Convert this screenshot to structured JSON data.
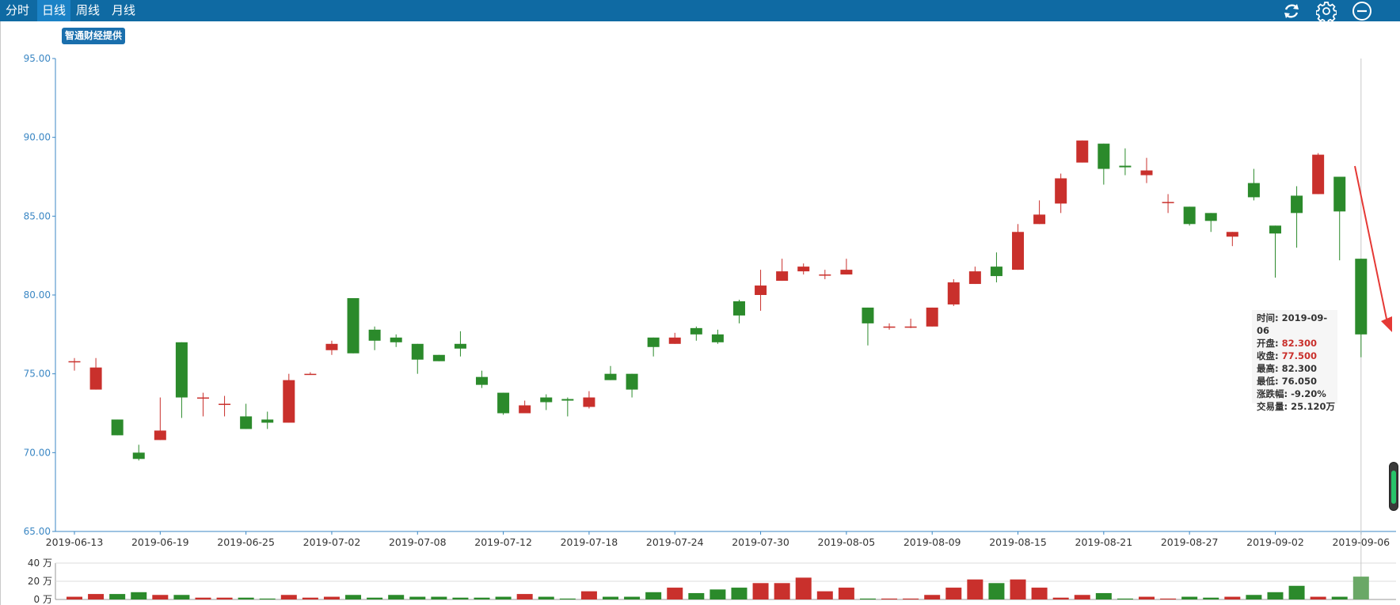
{
  "toolbar": {
    "tabs": [
      {
        "label": "分时"
      },
      {
        "label": "日线"
      },
      {
        "label": "周线"
      },
      {
        "label": "月线"
      }
    ],
    "active_tab": "日线",
    "icons": [
      "refresh-icon",
      "gear-icon",
      "minus-circle-icon"
    ]
  },
  "badge": "智通财经提供",
  "colors": {
    "up": "#c9302c",
    "down": "#2b8a2b",
    "axis": "#3b87c4",
    "bar_bg": "#0f6aa3",
    "tab_active": "#1b82c6"
  },
  "tooltip": {
    "time_label": "时间:",
    "time": "2019-09-06",
    "open_label": "开盘:",
    "open": "82.300",
    "close_label": "收盘:",
    "close": "77.500",
    "high_label": "最高:",
    "high": "82.300",
    "low_label": "最低:",
    "low": "76.050",
    "change_label": "涨跌幅:",
    "change": "-9.20%",
    "volume_label": "交易量:",
    "volume": "25.120万"
  },
  "chart_data": {
    "type": "candlestick",
    "ylim": [
      65,
      95
    ],
    "yticks": [
      "95.00",
      "90.00",
      "85.00",
      "80.00",
      "75.00",
      "70.00",
      "65.00"
    ],
    "volume_ylim": [
      0,
      40
    ],
    "volume_ticks": [
      "40 万",
      "20 万",
      "0 万"
    ],
    "xtick_labels": [
      "2019-06-13",
      "2019-06-19",
      "2019-06-25",
      "2019-07-02",
      "2019-07-08",
      "2019-07-12",
      "2019-07-18",
      "2019-07-24",
      "2019-07-30",
      "2019-08-05",
      "2019-08-09",
      "2019-08-15",
      "2019-08-21",
      "2019-08-27",
      "2019-09-02",
      "2019-09-06"
    ],
    "grid": false,
    "candles": [
      {
        "o": 75.8,
        "c": 75.8,
        "h": 76.0,
        "l": 75.2,
        "v": 3
      },
      {
        "o": 74.0,
        "c": 75.4,
        "h": 76.0,
        "l": 74.0,
        "v": 6
      },
      {
        "o": 72.1,
        "c": 71.1,
        "h": 72.1,
        "l": 71.1,
        "v": 6
      },
      {
        "o": 70.0,
        "c": 69.6,
        "h": 70.5,
        "l": 69.5,
        "v": 8
      },
      {
        "o": 70.8,
        "c": 71.4,
        "h": 73.5,
        "l": 70.8,
        "v": 5
      },
      {
        "o": 77.0,
        "c": 73.5,
        "h": 77.0,
        "l": 72.2,
        "v": 5
      },
      {
        "o": 73.5,
        "c": 73.5,
        "h": 73.8,
        "l": 72.3,
        "v": 2
      },
      {
        "o": 73.1,
        "c": 73.1,
        "h": 73.6,
        "l": 72.3,
        "v": 2
      },
      {
        "o": 72.3,
        "c": 71.5,
        "h": 73.1,
        "l": 71.5,
        "v": 2
      },
      {
        "o": 72.1,
        "c": 71.9,
        "h": 72.6,
        "l": 71.5,
        "v": 1
      },
      {
        "o": 71.9,
        "c": 74.6,
        "h": 75.0,
        "l": 71.9,
        "v": 5
      },
      {
        "o": 75.0,
        "c": 75.0,
        "h": 75.1,
        "l": 75.0,
        "v": 2
      },
      {
        "o": 76.5,
        "c": 76.9,
        "h": 77.1,
        "l": 76.2,
        "v": 3
      },
      {
        "o": 79.8,
        "c": 76.3,
        "h": 79.8,
        "l": 76.3,
        "v": 5
      },
      {
        "o": 77.8,
        "c": 77.1,
        "h": 78.0,
        "l": 76.5,
        "v": 2
      },
      {
        "o": 77.3,
        "c": 77.0,
        "h": 77.5,
        "l": 76.7,
        "v": 5
      },
      {
        "o": 76.9,
        "c": 75.9,
        "h": 76.9,
        "l": 75.0,
        "v": 3
      },
      {
        "o": 76.2,
        "c": 75.8,
        "h": 76.2,
        "l": 75.8,
        "v": 3
      },
      {
        "o": 76.9,
        "c": 76.6,
        "h": 77.7,
        "l": 76.1,
        "v": 2
      },
      {
        "o": 74.8,
        "c": 74.3,
        "h": 75.2,
        "l": 74.1,
        "v": 2
      },
      {
        "o": 73.8,
        "c": 72.5,
        "h": 73.8,
        "l": 72.4,
        "v": 3
      },
      {
        "o": 72.5,
        "c": 73.0,
        "h": 73.3,
        "l": 72.5,
        "v": 6
      },
      {
        "o": 73.5,
        "c": 73.2,
        "h": 73.7,
        "l": 72.7,
        "v": 3
      },
      {
        "o": 73.4,
        "c": 73.3,
        "h": 73.5,
        "l": 72.3,
        "v": 1
      },
      {
        "o": 72.9,
        "c": 73.5,
        "h": 73.9,
        "l": 72.8,
        "v": 9
      },
      {
        "o": 75.0,
        "c": 74.6,
        "h": 75.5,
        "l": 74.6,
        "v": 3
      },
      {
        "o": 75.0,
        "c": 74.0,
        "h": 75.0,
        "l": 73.5,
        "v": 3
      },
      {
        "o": 77.3,
        "c": 76.7,
        "h": 77.3,
        "l": 76.1,
        "v": 8
      },
      {
        "o": 76.9,
        "c": 77.3,
        "h": 77.6,
        "l": 76.9,
        "v": 13
      },
      {
        "o": 77.9,
        "c": 77.5,
        "h": 78.0,
        "l": 77.1,
        "v": 7
      },
      {
        "o": 77.5,
        "c": 77.0,
        "h": 77.8,
        "l": 76.9,
        "v": 11
      },
      {
        "o": 79.6,
        "c": 78.7,
        "h": 79.7,
        "l": 78.2,
        "v": 13
      },
      {
        "o": 80.0,
        "c": 80.6,
        "h": 81.6,
        "l": 79.0,
        "v": 18
      },
      {
        "o": 80.9,
        "c": 81.5,
        "h": 82.3,
        "l": 80.9,
        "v": 18
      },
      {
        "o": 81.5,
        "c": 81.8,
        "h": 82.0,
        "l": 81.3,
        "v": 24
      },
      {
        "o": 81.3,
        "c": 81.3,
        "h": 81.6,
        "l": 81.0,
        "v": 9
      },
      {
        "o": 81.3,
        "c": 81.6,
        "h": 82.3,
        "l": 81.3,
        "v": 13
      },
      {
        "o": 79.2,
        "c": 78.2,
        "h": 79.2,
        "l": 76.8,
        "v": 1
      },
      {
        "o": 78.0,
        "c": 78.0,
        "h": 78.2,
        "l": 77.8,
        "v": 1
      },
      {
        "o": 78.0,
        "c": 78.0,
        "h": 78.5,
        "l": 77.9,
        "v": 1
      },
      {
        "o": 78.0,
        "c": 79.2,
        "h": 79.2,
        "l": 78.0,
        "v": 5
      },
      {
        "o": 79.4,
        "c": 80.8,
        "h": 81.0,
        "l": 79.3,
        "v": 13
      },
      {
        "o": 80.7,
        "c": 81.5,
        "h": 81.8,
        "l": 80.7,
        "v": 22
      },
      {
        "o": 81.8,
        "c": 81.2,
        "h": 82.7,
        "l": 80.8,
        "v": 18
      },
      {
        "o": 81.6,
        "c": 84.0,
        "h": 84.5,
        "l": 81.6,
        "v": 22
      },
      {
        "o": 84.5,
        "c": 85.1,
        "h": 86.0,
        "l": 84.5,
        "v": 13
      },
      {
        "o": 85.8,
        "c": 87.4,
        "h": 87.7,
        "l": 85.2,
        "v": 2
      },
      {
        "o": 88.4,
        "c": 89.8,
        "h": 89.8,
        "l": 88.4,
        "v": 5
      },
      {
        "o": 89.6,
        "c": 88.0,
        "h": 89.6,
        "l": 87.0,
        "v": 7
      },
      {
        "o": 88.2,
        "c": 88.1,
        "h": 89.3,
        "l": 87.6,
        "v": 1
      },
      {
        "o": 87.6,
        "c": 87.9,
        "h": 88.7,
        "l": 87.1,
        "v": 3
      },
      {
        "o": 85.9,
        "c": 85.9,
        "h": 86.4,
        "l": 85.2,
        "v": 1
      },
      {
        "o": 85.6,
        "c": 84.5,
        "h": 85.6,
        "l": 84.4,
        "v": 3
      },
      {
        "o": 85.2,
        "c": 84.7,
        "h": 85.2,
        "l": 84.0,
        "v": 2
      },
      {
        "o": 83.7,
        "c": 84.0,
        "h": 84.0,
        "l": 83.1,
        "v": 3
      },
      {
        "o": 87.1,
        "c": 86.2,
        "h": 88.0,
        "l": 86.0,
        "v": 5
      },
      {
        "o": 84.4,
        "c": 83.9,
        "h": 84.4,
        "l": 81.1,
        "v": 8
      },
      {
        "o": 86.3,
        "c": 85.2,
        "h": 86.9,
        "l": 83.0,
        "v": 15
      },
      {
        "o": 86.4,
        "c": 88.9,
        "h": 89.0,
        "l": 86.4,
        "v": 3
      },
      {
        "o": 87.5,
        "c": 85.3,
        "h": 87.5,
        "l": 82.2,
        "v": 3
      },
      {
        "o": 82.3,
        "c": 77.5,
        "h": 82.3,
        "l": 76.05,
        "v": 25.12
      }
    ]
  }
}
